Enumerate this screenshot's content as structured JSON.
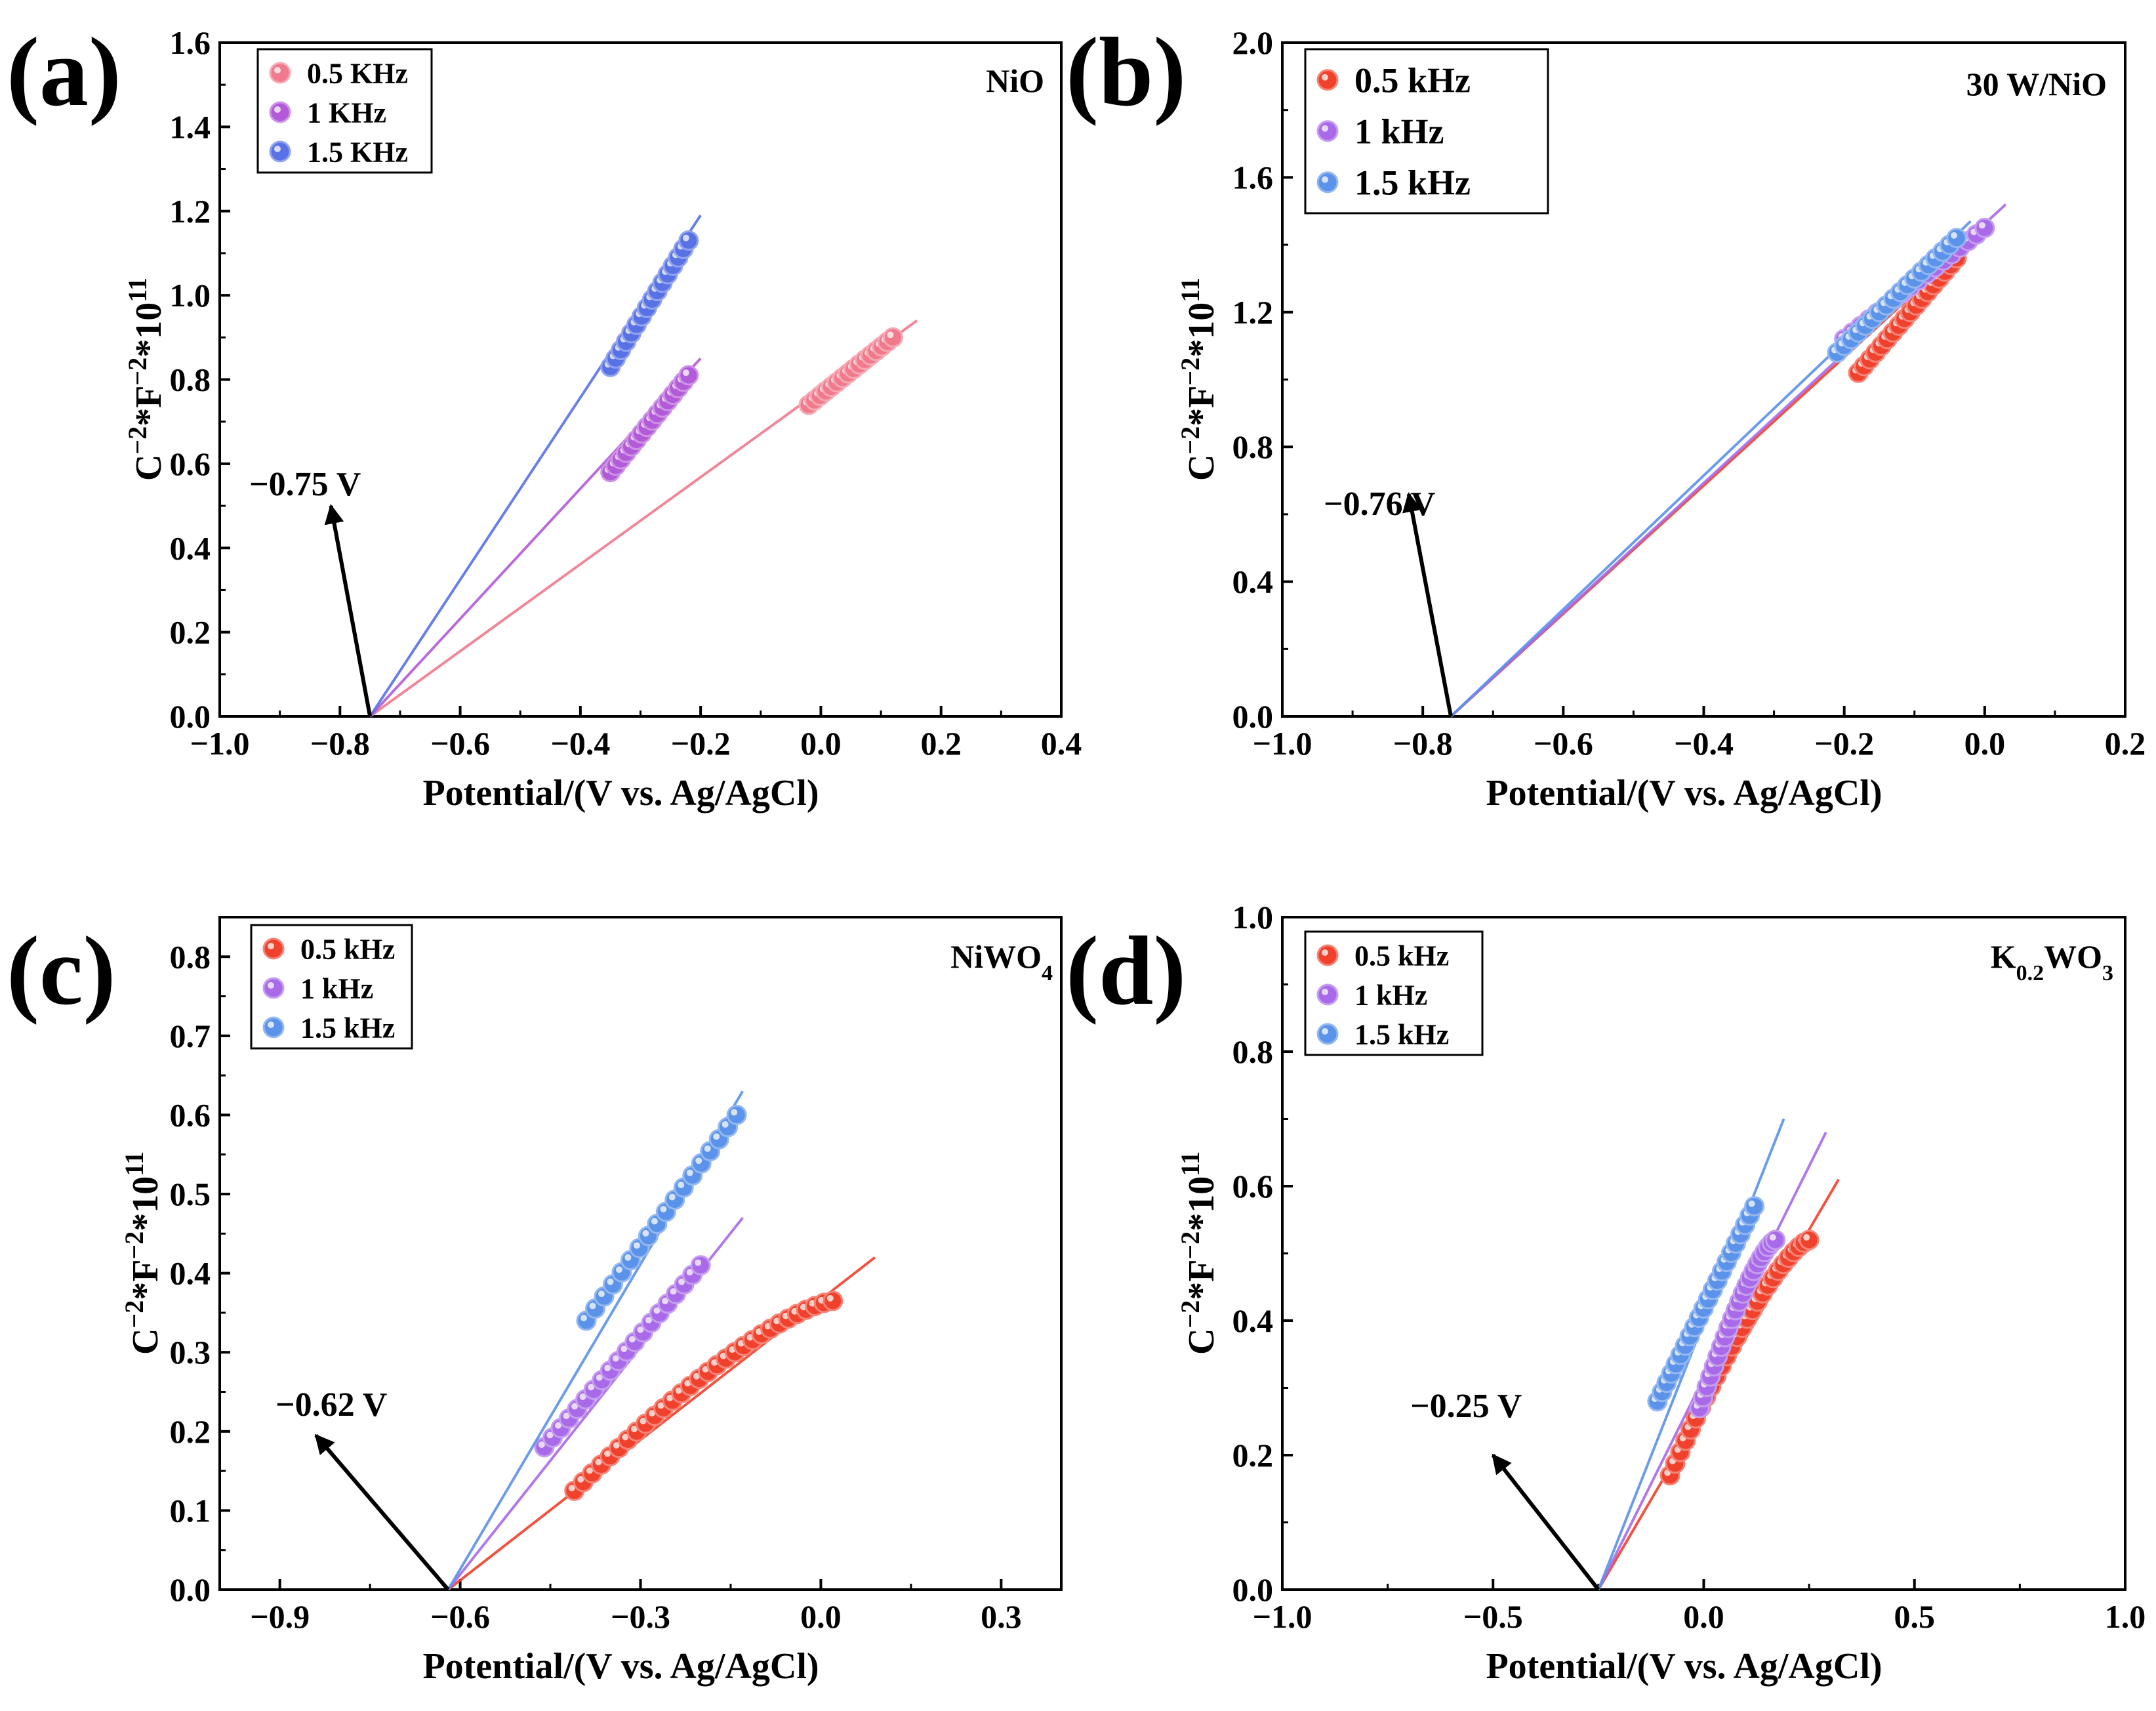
{
  "figure": {
    "x_axis_label": "Potential/(V vs. Ag/AgCl)",
    "y_axis_label": "C",
    "y_axis_label_parts": [
      "C",
      "−2",
      "*F",
      "−2",
      "*10",
      "11"
    ]
  },
  "colors": {
    "red": "#f0412d",
    "pink": "#f07a8c",
    "purple": "#b25ad8",
    "violet": "#a86ae8",
    "blue": "#5872e6",
    "lightblue": "#5b92ea"
  },
  "chart_data": [
    {
      "panel": "(a)",
      "type": "scatter",
      "sample": "NiO",
      "xlabel": "Potential/(V vs. Ag/AgCl)",
      "xlim": [
        -1.0,
        0.4
      ],
      "ylim": [
        0.0,
        1.6
      ],
      "xticks": [
        -1.0,
        -0.8,
        -0.6,
        -0.4,
        -0.2,
        0.0,
        0.2,
        0.4
      ],
      "yticks": [
        0.0,
        0.2,
        0.4,
        0.6,
        0.8,
        1.0,
        1.2,
        1.4,
        1.6
      ],
      "xtick_labels": [
        "−1.0",
        "−0.8",
        "−0.6",
        "−0.4",
        "−0.2",
        "0.0",
        "0.2",
        "0.4"
      ],
      "ytick_labels": [
        "0.0",
        "0.2",
        "0.4",
        "0.6",
        "0.8",
        "1.0",
        "1.2",
        "1.4",
        "1.6"
      ],
      "legend": [
        "0.5 KHz",
        "1 KHz",
        "1.5 KHz"
      ],
      "legend_font": 44,
      "intercept": -0.75,
      "annotation": "−0.75 V",
      "series": [
        {
          "name": "0.5 KHz",
          "color": "#f07a8c",
          "x_range": [
            -0.02,
            0.12
          ],
          "fit_end": 0.16,
          "n": 16
        },
        {
          "name": "1 KHz",
          "color": "#b25ad8",
          "x_range": [
            -0.35,
            -0.22
          ],
          "fit_end": -0.2,
          "n": 16
        },
        {
          "name": "1.5 KHz",
          "color": "#5872e6",
          "x_range": [
            -0.35,
            -0.22
          ],
          "fit_end": -0.2,
          "n": 16,
          "y_start": 0.83,
          "y_end": 1.13,
          "fit_y_end": 1.19
        }
      ]
    },
    {
      "panel": "(b)",
      "type": "scatter",
      "sample": "30 W/NiO",
      "xlabel": "Potential/(V vs. Ag/AgCl)",
      "xlim": [
        -1.0,
        0.2
      ],
      "ylim": [
        0.0,
        2.0
      ],
      "xticks": [
        -1.0,
        -0.8,
        -0.6,
        -0.4,
        -0.2,
        0.0,
        0.2
      ],
      "yticks": [
        0.0,
        0.4,
        0.8,
        1.2,
        1.6,
        2.0
      ],
      "xtick_labels": [
        "−1.0",
        "−0.8",
        "−0.6",
        "−0.4",
        "−0.2",
        "0.0",
        "0.2"
      ],
      "ytick_labels": [
        "0.0",
        "0.4",
        "0.8",
        "1.2",
        "1.6",
        "2.0"
      ],
      "legend": [
        "0.5 kHz",
        "1 kHz",
        "1.5 kHz"
      ],
      "legend_font": 54,
      "intercept": -0.76,
      "annotation": "−0.76 V",
      "series": [
        {
          "name": "0.5 kHz",
          "color": "#f0412d",
          "x_range": [
            -0.18,
            -0.04
          ],
          "fit_end": -0.03,
          "n": 18,
          "y_start": 1.02,
          "y_end": 1.36,
          "fit_y_end": 1.39
        },
        {
          "name": "1 kHz",
          "color": "#a86ae8",
          "x_range": [
            -0.2,
            0.0
          ],
          "fit_end": 0.03,
          "n": 18,
          "y_start": 1.12,
          "y_end": 1.45,
          "fit_y_end": 1.52
        },
        {
          "name": "1.5 kHz",
          "color": "#5b92ea",
          "x_range": [
            -0.21,
            -0.04
          ],
          "fit_end": -0.02,
          "n": 18,
          "y_start": 1.08,
          "y_end": 1.42,
          "fit_y_end": 1.47
        }
      ]
    },
    {
      "panel": "(c)",
      "type": "scatter",
      "sample": "NiWO",
      "sample_sub": "4",
      "xlabel": "Potential/(V vs. Ag/AgCl)",
      "xlim": [
        -1.0,
        0.4
      ],
      "ylim": [
        0.0,
        0.85
      ],
      "xticks": [
        -0.9,
        -0.6,
        -0.3,
        0.0,
        0.3
      ],
      "yticks": [
        0.0,
        0.1,
        0.2,
        0.3,
        0.4,
        0.5,
        0.6,
        0.7,
        0.8
      ],
      "xtick_labels": [
        "−0.9",
        "−0.6",
        "−0.3",
        "0.0",
        "0.3"
      ],
      "ytick_labels": [
        "0.0",
        "0.1",
        "0.2",
        "0.3",
        "0.4",
        "0.5",
        "0.6",
        "0.7",
        "0.8"
      ],
      "legend": [
        "0.5 kHz",
        "1 kHz",
        "1.5 kHz"
      ],
      "legend_font": 44,
      "intercept": -0.62,
      "annotation": "−0.62 V",
      "series": [
        {
          "name": "0.5 kHz",
          "color": "#f0412d",
          "x_range": [
            -0.41,
            0.02
          ],
          "fit_end": 0.09,
          "n": 30,
          "y_start": 0.125,
          "y_end": 0.365,
          "fit_y_end": 0.42,
          "curve": "sqrt"
        },
        {
          "name": "1 kHz",
          "color": "#a86ae8",
          "x_range": [
            -0.46,
            -0.2
          ],
          "fit_end": -0.13,
          "n": 20,
          "y_start": 0.18,
          "y_end": 0.41,
          "fit_y_end": 0.47
        },
        {
          "name": "1.5 kHz",
          "color": "#5b92ea",
          "x_range": [
            -0.39,
            -0.14
          ],
          "fit_end": -0.13,
          "n": 18,
          "y_start": 0.34,
          "y_end": 0.6,
          "fit_y_end": 0.63
        }
      ]
    },
    {
      "panel": "(d)",
      "type": "scatter",
      "sample": "K",
      "sample_sub": "0.2",
      "sample_mid": "WO",
      "sample_sub2": "3",
      "xlabel": "Potential/(V vs. Ag/AgCl)",
      "xlim": [
        -1.0,
        1.0
      ],
      "ylim": [
        0.0,
        1.0
      ],
      "xticks": [
        -1.0,
        -0.5,
        0.0,
        0.5,
        1.0
      ],
      "yticks": [
        0.0,
        0.2,
        0.4,
        0.6,
        0.8,
        1.0
      ],
      "xtick_labels": [
        "−1.0",
        "−0.5",
        "0.0",
        "0.5",
        "1.0"
      ],
      "ytick_labels": [
        "0.0",
        "0.2",
        "0.4",
        "0.6",
        "0.8",
        "1.0"
      ],
      "legend": [
        "0.5 kHz",
        "1 kHz",
        "1.5 kHz"
      ],
      "legend_font": 44,
      "intercept": -0.25,
      "annotation": "−0.25 V",
      "series": [
        {
          "name": "0.5 kHz",
          "color": "#f0412d",
          "x_range": [
            -0.08,
            0.25
          ],
          "fit_end": 0.32,
          "n": 28,
          "y_start": 0.17,
          "y_end": 0.52,
          "fit_y_end": 0.61,
          "curve": "sqrt"
        },
        {
          "name": "1 kHz",
          "color": "#a86ae8",
          "x_range": [
            -0.01,
            0.17
          ],
          "fit_end": 0.29,
          "n": 22,
          "y_start": 0.27,
          "y_end": 0.52,
          "fit_y_end": 0.68,
          "curve": "sqrt"
        },
        {
          "name": "1.5 kHz",
          "color": "#5b92ea",
          "x_range": [
            -0.11,
            0.12
          ],
          "fit_end": 0.19,
          "n": 22,
          "y_start": 0.28,
          "y_end": 0.57,
          "fit_y_end": 0.7
        }
      ]
    }
  ]
}
